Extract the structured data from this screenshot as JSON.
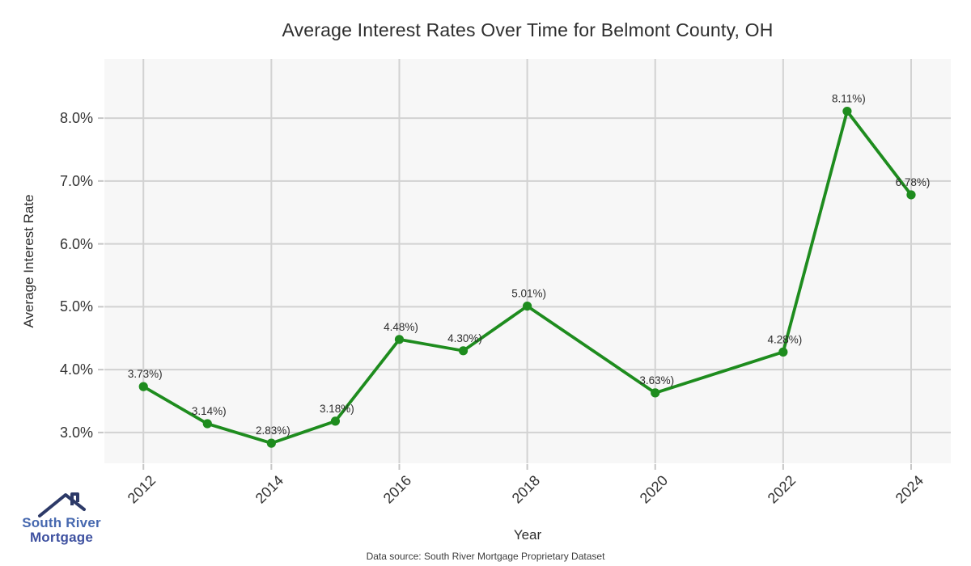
{
  "title": "Average Interest Rates Over Time for Belmont County, OH",
  "axes": {
    "xlabel": "Year",
    "ylabel": "Average Interest Rate"
  },
  "footer": "Data source: South River Mortgage Proprietary Dataset",
  "logo": {
    "icon": "house-roof-icon",
    "line1": "South River",
    "line2": "Mortgage",
    "roof_color": "#2d3a68",
    "text_color_1": "#4668af",
    "text_color_2": "#3e51a0"
  },
  "colors": {
    "line": "#1e8c1e",
    "marker": "#1e8c1e",
    "plot_background": "#f7f7f7",
    "gridline": "#d2d2d2",
    "tick_mark": "#c6c6c6",
    "tick_text": "#333333",
    "data_label_text": "#2d2d2d"
  },
  "chart_data": {
    "type": "line",
    "title": "Average Interest Rates Over Time for Belmont County, OH",
    "xlabel": "Year",
    "ylabel": "Average Interest Rate",
    "grid": true,
    "legend": false,
    "x_range": [
      2011.39,
      2024.62
    ],
    "y_range": [
      2.51,
      8.94
    ],
    "x_ticks": [
      {
        "value": 2012,
        "label": "2012"
      },
      {
        "value": 2014,
        "label": "2014"
      },
      {
        "value": 2016,
        "label": "2016"
      },
      {
        "value": 2018,
        "label": "2018"
      },
      {
        "value": 2020,
        "label": "2020"
      },
      {
        "value": 2022,
        "label": "2022"
      },
      {
        "value": 2024,
        "label": "2024"
      }
    ],
    "y_ticks": [
      {
        "value": 3.0,
        "label": "3.0%"
      },
      {
        "value": 4.0,
        "label": "4.0%"
      },
      {
        "value": 5.0,
        "label": "5.0%"
      },
      {
        "value": 6.0,
        "label": "6.0%"
      },
      {
        "value": 7.0,
        "label": "7.0%"
      },
      {
        "value": 8.0,
        "label": "8.0%"
      }
    ],
    "series": [
      {
        "name": "Average Interest Rate",
        "points": [
          {
            "year": 2012,
            "value": 3.73,
            "label": "3.73%)"
          },
          {
            "year": 2013,
            "value": 3.14,
            "label": "3.14%)"
          },
          {
            "year": 2014,
            "value": 2.83,
            "label": "2.83%)"
          },
          {
            "year": 2015,
            "value": 3.18,
            "label": "3.18%)"
          },
          {
            "year": 2016,
            "value": 4.48,
            "label": "4.48%)"
          },
          {
            "year": 2017,
            "value": 4.3,
            "label": "4.30%)"
          },
          {
            "year": 2018,
            "value": 5.01,
            "label": "5.01%)"
          },
          {
            "year": 2020,
            "value": 3.63,
            "label": "3.63%)"
          },
          {
            "year": 2022,
            "value": 4.28,
            "label": "4.28%)"
          },
          {
            "year": 2023,
            "value": 8.11,
            "label": "8.11%)"
          },
          {
            "year": 2024,
            "value": 6.78,
            "label": "6.78%)"
          }
        ]
      }
    ]
  }
}
